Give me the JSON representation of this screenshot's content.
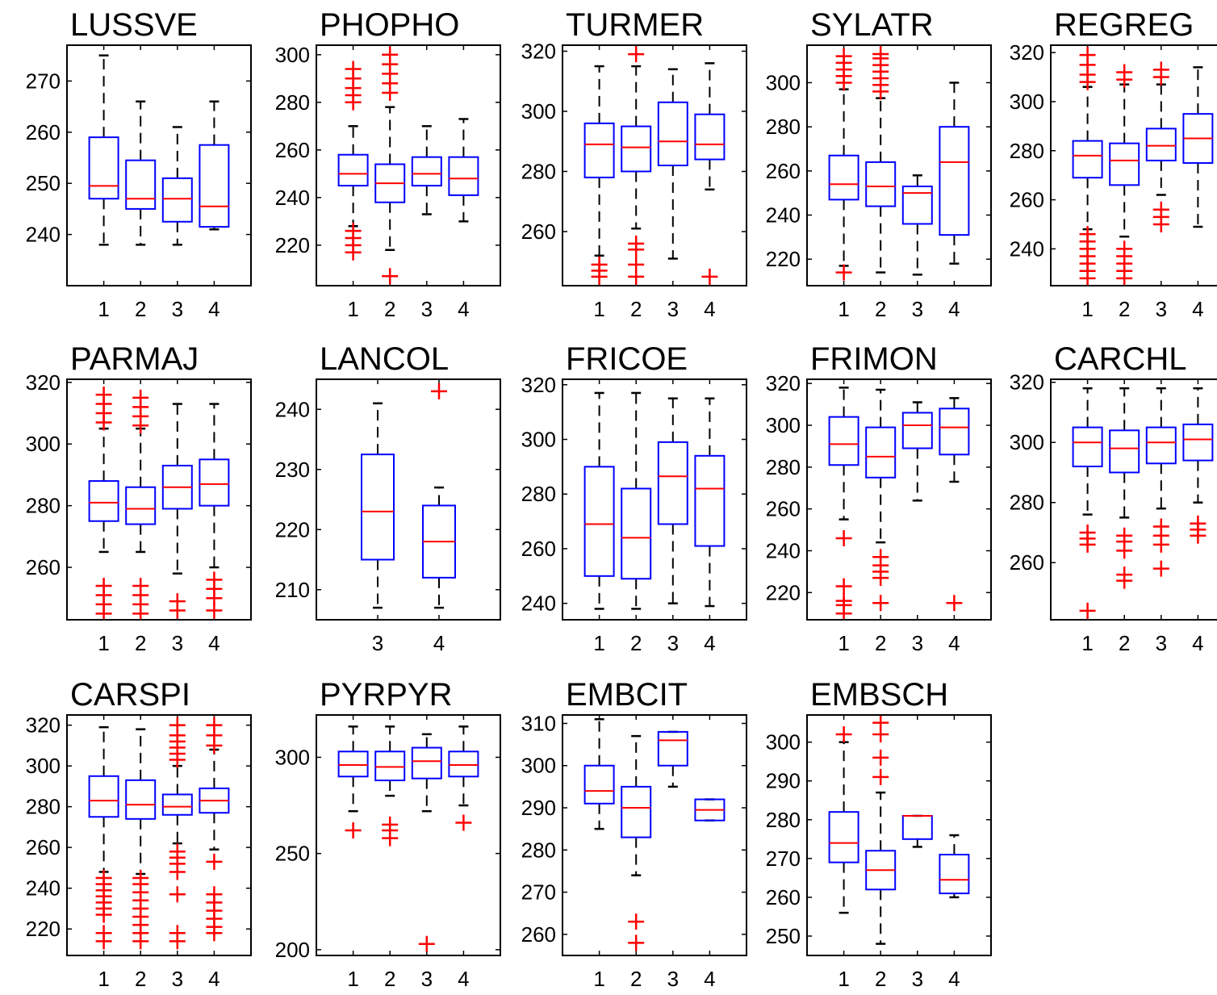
{
  "chart_data": [
    {
      "type": "box",
      "title": "LUSSVE",
      "categories": [
        "1",
        "2",
        "3",
        "4"
      ],
      "ylim": [
        230,
        277
      ],
      "yticks": [
        240,
        250,
        260,
        270
      ],
      "boxes": [
        {
          "min": 238,
          "q1": 247,
          "median": 249.5,
          "q3": 259,
          "max": 275,
          "outliers": []
        },
        {
          "min": 238,
          "q1": 245,
          "median": 247,
          "q3": 254.5,
          "max": 266,
          "outliers": []
        },
        {
          "min": 238,
          "q1": 242.5,
          "median": 247,
          "q3": 251,
          "max": 261,
          "outliers": []
        },
        {
          "min": 241,
          "q1": 241.5,
          "median": 245.5,
          "q3": 257.5,
          "max": 266,
          "outliers": []
        }
      ]
    },
    {
      "type": "box",
      "title": "PHOPHO",
      "categories": [
        "1",
        "2",
        "3",
        "4"
      ],
      "ylim": [
        203,
        304
      ],
      "yticks": [
        220,
        240,
        260,
        280,
        300
      ],
      "boxes": [
        {
          "min": 228,
          "q1": 245,
          "median": 250,
          "q3": 258,
          "max": 270,
          "outliers": [
            217,
            220,
            223,
            226,
            280,
            283,
            286,
            290,
            294
          ]
        },
        {
          "min": 218,
          "q1": 238,
          "median": 246,
          "q3": 254,
          "max": 278,
          "outliers": [
            207,
            284,
            288,
            292,
            296,
            300
          ]
        },
        {
          "min": 233,
          "q1": 245,
          "median": 250,
          "q3": 257,
          "max": 270,
          "outliers": []
        },
        {
          "min": 230,
          "q1": 241,
          "median": 248,
          "q3": 257,
          "max": 273,
          "outliers": []
        }
      ]
    },
    {
      "type": "box",
      "title": "TURMER",
      "categories": [
        "1",
        "2",
        "3",
        "4"
      ],
      "ylim": [
        242,
        322
      ],
      "yticks": [
        260,
        280,
        300,
        320
      ],
      "boxes": [
        {
          "min": 252,
          "q1": 278,
          "median": 289,
          "q3": 296,
          "max": 315,
          "outliers": [
            245,
            247,
            249
          ]
        },
        {
          "min": 261,
          "q1": 280,
          "median": 288,
          "q3": 295,
          "max": 315,
          "outliers": [
            245,
            249,
            254,
            256,
            319
          ]
        },
        {
          "min": 251,
          "q1": 282,
          "median": 290,
          "q3": 303,
          "max": 314,
          "outliers": []
        },
        {
          "min": 274,
          "q1": 284,
          "median": 289,
          "q3": 299,
          "max": 316,
          "outliers": [
            245
          ]
        }
      ]
    },
    {
      "type": "box",
      "title": "SYLATR",
      "categories": [
        "1",
        "2",
        "3",
        "4"
      ],
      "ylim": [
        208,
        317
      ],
      "yticks": [
        220,
        240,
        260,
        280,
        300
      ],
      "boxes": [
        {
          "min": 217,
          "q1": 247,
          "median": 254,
          "q3": 267,
          "max": 297,
          "outliers": [
            214,
            300,
            303,
            306,
            309,
            312
          ]
        },
        {
          "min": 214,
          "q1": 244,
          "median": 253,
          "q3": 264,
          "max": 293,
          "outliers": [
            296,
            299,
            302,
            305,
            308,
            311,
            313
          ]
        },
        {
          "min": 213,
          "q1": 236,
          "median": 250,
          "q3": 253,
          "max": 258,
          "outliers": []
        },
        {
          "min": 218,
          "q1": 231,
          "median": 264,
          "q3": 280,
          "max": 300,
          "outliers": []
        }
      ]
    },
    {
      "type": "box",
      "title": "REGREG",
      "categories": [
        "1",
        "2",
        "3",
        "4"
      ],
      "ylim": [
        225,
        323
      ],
      "yticks": [
        240,
        260,
        280,
        300,
        320
      ],
      "boxes": [
        {
          "min": 248,
          "q1": 269,
          "median": 278,
          "q3": 284,
          "max": 306,
          "outliers": [
            228,
            231,
            234,
            237,
            240,
            243,
            246,
            308,
            311,
            315,
            319
          ]
        },
        {
          "min": 245,
          "q1": 266,
          "median": 276,
          "q3": 283,
          "max": 307,
          "outliers": [
            228,
            231,
            234,
            237,
            240,
            309,
            312
          ]
        },
        {
          "min": 262,
          "q1": 276,
          "median": 282,
          "q3": 289,
          "max": 307,
          "outliers": [
            250,
            253,
            256,
            310,
            313
          ]
        },
        {
          "min": 249,
          "q1": 275,
          "median": 285,
          "q3": 295,
          "max": 314,
          "outliers": []
        }
      ]
    },
    {
      "type": "box",
      "title": "PARMAJ",
      "categories": [
        "1",
        "2",
        "3",
        "4"
      ],
      "ylim": [
        243,
        321
      ],
      "yticks": [
        260,
        280,
        300,
        320
      ],
      "boxes": [
        {
          "min": 265,
          "q1": 275,
          "median": 281,
          "q3": 288,
          "max": 305,
          "outliers": [
            245,
            248,
            251,
            254,
            307,
            310,
            313,
            316
          ]
        },
        {
          "min": 265,
          "q1": 274,
          "median": 279,
          "q3": 286,
          "max": 305,
          "outliers": [
            245,
            248,
            251,
            254,
            306,
            309,
            312,
            315
          ]
        },
        {
          "min": 258,
          "q1": 279,
          "median": 286,
          "q3": 293,
          "max": 313,
          "outliers": [
            246,
            249
          ]
        },
        {
          "min": 260,
          "q1": 280,
          "median": 287,
          "q3": 295,
          "max": 313,
          "outliers": [
            246,
            250,
            253,
            256
          ]
        }
      ]
    },
    {
      "type": "box",
      "title": "LANCOL",
      "categories": [
        "3",
        "4"
      ],
      "ylim": [
        205,
        245
      ],
      "yticks": [
        210,
        220,
        230,
        240
      ],
      "boxes": [
        {
          "min": 207,
          "q1": 215,
          "median": 223,
          "q3": 232.5,
          "max": 241,
          "outliers": []
        },
        {
          "min": 207,
          "q1": 212,
          "median": 218,
          "q3": 224,
          "max": 227,
          "outliers": [
            243
          ]
        }
      ]
    },
    {
      "type": "box",
      "title": "FRICOE",
      "categories": [
        "1",
        "2",
        "3",
        "4"
      ],
      "ylim": [
        234,
        322
      ],
      "yticks": [
        240,
        260,
        280,
        300,
        320
      ],
      "boxes": [
        {
          "min": 238,
          "q1": 250,
          "median": 269,
          "q3": 290,
          "max": 317,
          "outliers": []
        },
        {
          "min": 238,
          "q1": 249,
          "median": 264,
          "q3": 282,
          "max": 317,
          "outliers": []
        },
        {
          "min": 240,
          "q1": 269,
          "median": 286.5,
          "q3": 299,
          "max": 315,
          "outliers": []
        },
        {
          "min": 239,
          "q1": 261,
          "median": 282,
          "q3": 294,
          "max": 315,
          "outliers": []
        }
      ]
    },
    {
      "type": "box",
      "title": "FRIMON",
      "categories": [
        "1",
        "2",
        "3",
        "4"
      ],
      "ylim": [
        207,
        322
      ],
      "yticks": [
        220,
        240,
        260,
        280,
        300,
        320
      ],
      "boxes": [
        {
          "min": 255,
          "q1": 281,
          "median": 291,
          "q3": 304,
          "max": 318,
          "outliers": [
            210,
            214,
            216,
            223,
            246
          ]
        },
        {
          "min": 244,
          "q1": 275,
          "median": 285,
          "q3": 299,
          "max": 317,
          "outliers": [
            215,
            227,
            230,
            233,
            237
          ]
        },
        {
          "min": 264,
          "q1": 289,
          "median": 300,
          "q3": 306,
          "max": 311,
          "outliers": []
        },
        {
          "min": 273,
          "q1": 286,
          "median": 299,
          "q3": 308,
          "max": 313,
          "outliers": [
            215
          ]
        }
      ]
    },
    {
      "type": "box",
      "title": "CARCHL",
      "categories": [
        "1",
        "2",
        "3",
        "4"
      ],
      "ylim": [
        241,
        321
      ],
      "yticks": [
        260,
        280,
        300,
        320
      ],
      "boxes": [
        {
          "min": 276,
          "q1": 292,
          "median": 300,
          "q3": 305,
          "max": 318,
          "outliers": [
            244,
            266,
            268,
            270
          ]
        },
        {
          "min": 275,
          "q1": 290,
          "median": 298,
          "q3": 304,
          "max": 318,
          "outliers": [
            254,
            256,
            264,
            267,
            269
          ]
        },
        {
          "min": 278,
          "q1": 293,
          "median": 300,
          "q3": 305,
          "max": 318,
          "outliers": [
            258,
            266,
            269,
            272
          ]
        },
        {
          "min": 280,
          "q1": 294,
          "median": 301,
          "q3": 306,
          "max": 318,
          "outliers": [
            269,
            271,
            273
          ]
        }
      ]
    },
    {
      "type": "box",
      "title": "CARSPI",
      "categories": [
        "1",
        "2",
        "3",
        "4"
      ],
      "ylim": [
        207,
        325
      ],
      "yticks": [
        220,
        240,
        260,
        280,
        300,
        320
      ],
      "boxes": [
        {
          "min": 248,
          "q1": 275,
          "median": 283,
          "q3": 295,
          "max": 319,
          "outliers": [
            214,
            218,
            227,
            230,
            233,
            236,
            239,
            242,
            245
          ]
        },
        {
          "min": 247,
          "q1": 274,
          "median": 281,
          "q3": 293,
          "max": 318,
          "outliers": [
            214,
            218,
            222,
            226,
            230,
            234,
            238,
            242,
            245
          ]
        },
        {
          "min": 262,
          "q1": 276,
          "median": 280,
          "q3": 286,
          "max": 300,
          "outliers": [
            214,
            218,
            237,
            248,
            252,
            255,
            258,
            303,
            306,
            309,
            312,
            315,
            320
          ]
        },
        {
          "min": 259,
          "q1": 277,
          "median": 283,
          "q3": 289,
          "max": 308,
          "outliers": [
            218,
            221,
            225,
            229,
            233,
            237,
            253,
            310,
            315,
            320
          ]
        }
      ]
    },
    {
      "type": "box",
      "title": "PYRPYR",
      "categories": [
        "1",
        "2",
        "3",
        "4"
      ],
      "ylim": [
        197,
        322
      ],
      "yticks": [
        200,
        250,
        300
      ],
      "boxes": [
        {
          "min": 272,
          "q1": 290,
          "median": 296,
          "q3": 303,
          "max": 316,
          "outliers": [
            262
          ]
        },
        {
          "min": 280,
          "q1": 288,
          "median": 295,
          "q3": 303,
          "max": 316,
          "outliers": [
            258,
            262,
            265
          ]
        },
        {
          "min": 272,
          "q1": 289,
          "median": 298,
          "q3": 305,
          "max": 312,
          "outliers": [
            203
          ]
        },
        {
          "min": 275,
          "q1": 290,
          "median": 296,
          "q3": 303,
          "max": 316,
          "outliers": [
            266
          ]
        }
      ]
    },
    {
      "type": "box",
      "title": "EMBCIT",
      "categories": [
        "1",
        "2",
        "3",
        "4"
      ],
      "ylim": [
        255,
        312
      ],
      "yticks": [
        260,
        270,
        280,
        290,
        300,
        310
      ],
      "boxes": [
        {
          "min": 285,
          "q1": 291,
          "median": 294,
          "q3": 300,
          "max": 311,
          "outliers": []
        },
        {
          "min": 274,
          "q1": 283,
          "median": 290,
          "q3": 295,
          "max": 307,
          "outliers": [
            258,
            263
          ]
        },
        {
          "min": 295,
          "q1": 300,
          "median": 306,
          "q3": 308,
          "max": 308,
          "outliers": []
        },
        {
          "min": 287,
          "q1": 287,
          "median": 289.5,
          "q3": 292,
          "max": 292,
          "outliers": []
        }
      ]
    },
    {
      "type": "box",
      "title": "EMBSCH",
      "categories": [
        "1",
        "2",
        "3",
        "4"
      ],
      "ylim": [
        245,
        307
      ],
      "yticks": [
        250,
        260,
        270,
        280,
        290,
        300
      ],
      "boxes": [
        {
          "min": 256,
          "q1": 269,
          "median": 274,
          "q3": 282,
          "max": 300,
          "outliers": [
            302
          ]
        },
        {
          "min": 248,
          "q1": 262,
          "median": 267,
          "q3": 272,
          "max": 287,
          "outliers": [
            291,
            296,
            302,
            305
          ]
        },
        {
          "min": 273,
          "q1": 275,
          "median": 281,
          "q3": 281,
          "max": 281,
          "outliers": []
        },
        {
          "min": 260,
          "q1": 261,
          "median": 264.5,
          "q3": 271,
          "max": 276,
          "outliers": []
        }
      ]
    }
  ]
}
